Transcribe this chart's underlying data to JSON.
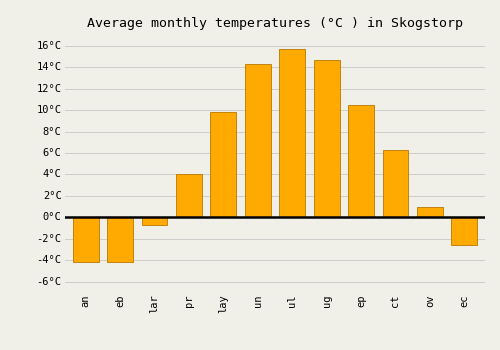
{
  "title": "Average monthly temperatures (°C ) in Skogstorp",
  "month_labels": [
    "an",
    "eb",
    "lar",
    "pr",
    "lay",
    "un",
    "ul",
    "ug",
    "ep",
    "ct",
    "ov",
    "ec"
  ],
  "temperatures": [
    -4.2,
    -4.2,
    -0.7,
    4.0,
    9.8,
    14.3,
    15.7,
    14.7,
    10.5,
    6.3,
    1.0,
    -2.6
  ],
  "bar_color": "#FFAA00",
  "bar_edge_color": "#BB7700",
  "ylim": [
    -6.5,
    17.0
  ],
  "yticks": [
    -6,
    -4,
    -2,
    0,
    2,
    4,
    6,
    8,
    10,
    12,
    14,
    16
  ],
  "ytick_labels": [
    "-6°C",
    "-4°C",
    "-2°C",
    "0°C",
    "2°C",
    "4°C",
    "6°C",
    "8°C",
    "10°C",
    "12°C",
    "14°C",
    "16°C"
  ],
  "background_color": "#f0f0e8",
  "grid_color": "#cccccc",
  "title_fontsize": 9.5,
  "tick_fontsize": 7.5
}
